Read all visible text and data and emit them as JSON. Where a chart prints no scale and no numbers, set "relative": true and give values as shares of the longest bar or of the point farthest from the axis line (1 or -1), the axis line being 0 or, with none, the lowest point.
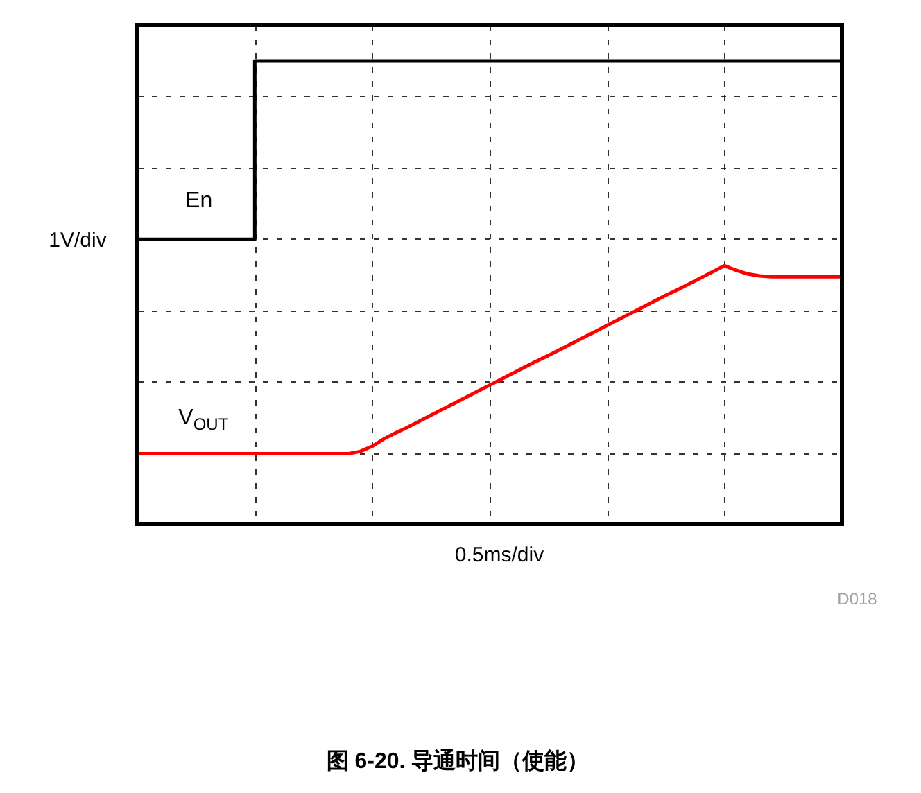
{
  "chart_data": {
    "type": "line",
    "title": "图 6-20. 导通时间（使能）",
    "xlabel": "0.5ms/div",
    "ylabel": "1V/div",
    "annotations": [
      "D018"
    ],
    "relative": true,
    "grid": true,
    "legend": false,
    "categories": [
      null,
      null,
      null,
      null,
      null,
      null,
      null,
      null,
      null,
      null,
      null,
      null,
      null,
      null,
      null,
      null,
      null,
      null,
      null,
      null,
      null,
      null,
      null,
      null,
      null,
      null,
      null,
      null,
      null,
      null,
      null,
      null,
      null,
      null,
      null,
      null,
      null,
      null,
      null,
      null,
      null,
      null,
      null,
      null,
      null,
      null,
      null,
      null,
      null,
      null,
      null,
      null,
      null,
      null,
      null,
      null,
      null,
      null,
      null,
      null,
      null
    ],
    "series": [
      {
        "name": "En",
        "type": "step",
        "color": "#000000",
        "values": [
          0.615,
          0.615,
          0.615,
          0.615,
          0.615,
          0.615,
          0.615,
          0.615,
          0.615,
          0.615,
          1.0,
          1.0,
          1.0,
          1.0,
          1.0,
          1.0,
          1.0,
          1.0,
          1.0,
          1.0,
          1.0,
          1.0,
          1.0,
          1.0,
          1.0,
          1.0,
          1.0,
          1.0,
          1.0,
          1.0,
          1.0,
          1.0,
          1.0,
          1.0,
          1.0,
          1.0,
          1.0,
          1.0,
          1.0,
          1.0,
          1.0,
          1.0,
          1.0,
          1.0,
          1.0,
          1.0,
          1.0,
          1.0,
          1.0,
          1.0,
          1.0,
          1.0,
          1.0,
          1.0,
          1.0,
          1.0,
          1.0,
          1.0,
          1.0,
          1.0,
          1.0
        ]
      },
      {
        "name": "V$_{OUT}$",
        "color": "#ff0000",
        "values": [
          0.152,
          0.152,
          0.152,
          0.152,
          0.152,
          0.152,
          0.152,
          0.152,
          0.152,
          0.152,
          0.152,
          0.152,
          0.152,
          0.152,
          0.152,
          0.152,
          0.152,
          0.152,
          0.152,
          0.157,
          0.168,
          0.184,
          0.197,
          0.209,
          0.222,
          0.235,
          0.248,
          0.261,
          0.274,
          0.287,
          0.3,
          0.313,
          0.326,
          0.339,
          0.352,
          0.364,
          0.377,
          0.39,
          0.403,
          0.416,
          0.429,
          0.442,
          0.455,
          0.468,
          0.481,
          0.494,
          0.506,
          0.519,
          0.532,
          0.545,
          0.558,
          0.548,
          0.54,
          0.536,
          0.534,
          0.534,
          0.534,
          0.534,
          0.534,
          0.534,
          0.534
        ]
      }
    ]
  }
}
